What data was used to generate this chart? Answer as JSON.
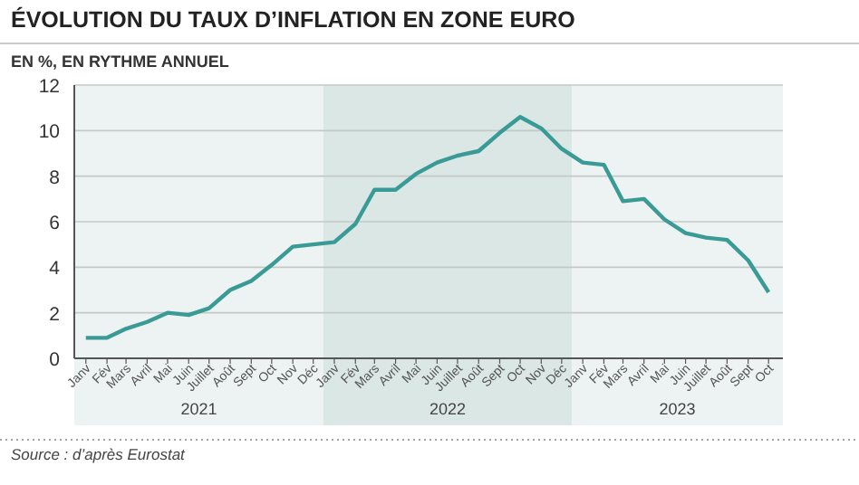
{
  "chart_data": {
    "type": "line",
    "title": "ÉVOLUTION DU TAUX D’INFLATION EN ZONE EURO",
    "subtitle": "EN %, EN RYTHME ANNUEL",
    "x": [
      "2021-01",
      "2021-02",
      "2021-03",
      "2021-04",
      "2021-05",
      "2021-06",
      "2021-07",
      "2021-08",
      "2021-09",
      "2021-10",
      "2021-11",
      "2021-12",
      "2022-01",
      "2022-02",
      "2022-03",
      "2022-04",
      "2022-05",
      "2022-06",
      "2022-07",
      "2022-08",
      "2022-09",
      "2022-10",
      "2022-11",
      "2022-12",
      "2023-01",
      "2023-02",
      "2023-03",
      "2023-04",
      "2023-05",
      "2023-06",
      "2023-07",
      "2023-08",
      "2023-09",
      "2023-10"
    ],
    "series": [
      {
        "color": "#3a9b96",
        "values": [
          0.9,
          0.9,
          1.3,
          1.6,
          2.0,
          1.9,
          2.2,
          3.0,
          3.4,
          4.1,
          4.9,
          5.0,
          5.1,
          5.9,
          7.4,
          7.4,
          8.1,
          8.6,
          8.9,
          9.1,
          9.9,
          10.6,
          10.1,
          9.2,
          8.6,
          8.5,
          6.9,
          7.0,
          6.1,
          5.5,
          5.3,
          5.2,
          4.3,
          2.9
        ]
      }
    ],
    "xlim": [
      "2020-12-15",
      "2023-10-22"
    ],
    "xticks": [
      {
        "value": "2021-01",
        "label": "Janv"
      },
      {
        "value": "2021-02",
        "label": "Fév"
      },
      {
        "value": "2021-03",
        "label": "Mars"
      },
      {
        "value": "2021-04",
        "label": "Avril"
      },
      {
        "value": "2021-05",
        "label": "Mai"
      },
      {
        "value": "2021-06",
        "label": "Juin"
      },
      {
        "value": "2021-07",
        "label": "Juillet"
      },
      {
        "value": "2021-08",
        "label": "Août"
      },
      {
        "value": "2021-09",
        "label": "Sept"
      },
      {
        "value": "2021-10",
        "label": "Oct"
      },
      {
        "value": "2021-11",
        "label": "Nov"
      },
      {
        "value": "2021-12",
        "label": "Déc"
      },
      {
        "value": "2022-01",
        "label": "Janv"
      },
      {
        "value": "2022-02",
        "label": "Fév"
      },
      {
        "value": "2022-03",
        "label": "Mars"
      },
      {
        "value": "2022-04",
        "label": "Avril"
      },
      {
        "value": "2022-05",
        "label": "Mai"
      },
      {
        "value": "2022-06",
        "label": "Juin"
      },
      {
        "value": "2022-07",
        "label": "Juillet"
      },
      {
        "value": "2022-08",
        "label": "Août"
      },
      {
        "value": "2022-09",
        "label": "Sept"
      },
      {
        "value": "2022-10",
        "label": "Oct"
      },
      {
        "value": "2022-11",
        "label": "Nov"
      },
      {
        "value": "2022-12",
        "label": "Déc"
      },
      {
        "value": "2023-01",
        "label": "Janv"
      },
      {
        "value": "2023-02",
        "label": "Fév"
      },
      {
        "value": "2023-03",
        "label": "Mars"
      },
      {
        "value": "2023-04",
        "label": "Avril"
      },
      {
        "value": "2023-05",
        "label": "Mai"
      },
      {
        "value": "2023-06",
        "label": "Juin"
      },
      {
        "value": "2023-07",
        "label": "Juillet"
      },
      {
        "value": "2023-08",
        "label": "Août"
      },
      {
        "value": "2023-09",
        "label": "Sept"
      },
      {
        "value": "2023-10",
        "label": "Oct"
      }
    ],
    "ylim": [
      0,
      12
    ],
    "yticks": [
      0,
      2,
      4,
      6,
      8,
      10,
      12
    ],
    "grid": "y",
    "bands": [
      {
        "axis": "x",
        "from": "2020-12-15",
        "to": "2021-12-16",
        "label": "2021",
        "color": "#edf3f2"
      },
      {
        "axis": "x",
        "from": "2021-12-16",
        "to": "2022-12-16",
        "label": "2022",
        "color": "#dae7e4"
      },
      {
        "axis": "x",
        "from": "2022-12-16",
        "to": "2023-10-22",
        "label": "2023",
        "color": "#edf3f2"
      }
    ],
    "annotations": [
      "Source : d’après Eurostat"
    ]
  }
}
